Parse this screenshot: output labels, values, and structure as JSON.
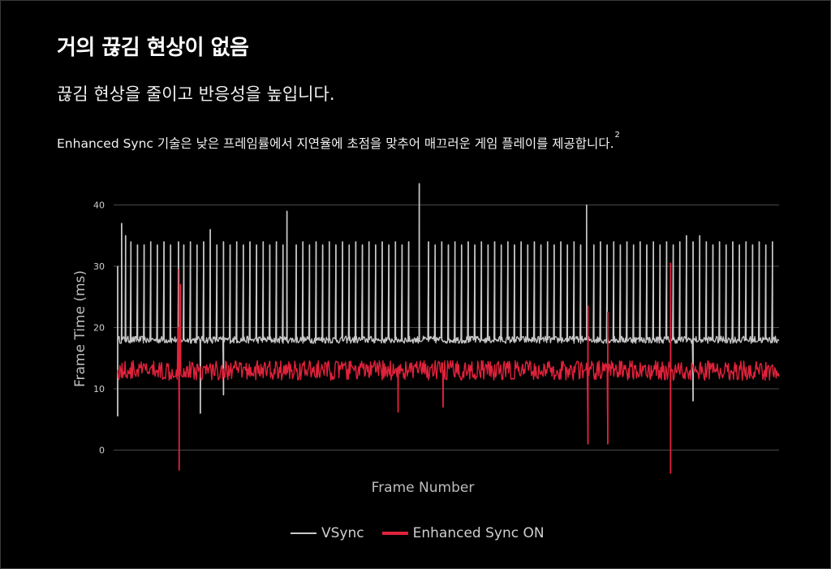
{
  "title": "거의 끊김 현상이 없음",
  "subtitle": "끊김 현상을 줄이고 반응성을 높입니다.",
  "description": "Enhanced Sync 기술은 낮은 프레임률에서 지연율에 초점을 맞추어 매끄러운 게임 플레이를 제공합니다.",
  "footnote": "2",
  "chart_data": {
    "type": "line",
    "xlabel": "Frame Number",
    "ylabel": "Frame Time (ms)",
    "ylim": [
      -3,
      45
    ],
    "yticks": [
      "0",
      "10",
      "20",
      "30",
      "40"
    ],
    "grid": true,
    "legend_position": "bottom-center",
    "colors": {
      "vsync": "#c8c8c8",
      "enhanced": "#e0223b",
      "grid": "#4a4a4a"
    },
    "series": [
      {
        "name": "VSync",
        "baseline": 18,
        "noise": 0.6,
        "spikes": [
          {
            "x": 0.0,
            "y": 30
          },
          {
            "x": 0.006,
            "y": 37
          },
          {
            "x": 0.012,
            "y": 35
          },
          {
            "x": 0.02,
            "y": 34
          },
          {
            "x": 0.03,
            "y": 33.5
          },
          {
            "x": 0.04,
            "y": 33.5
          },
          {
            "x": 0.05,
            "y": 34
          },
          {
            "x": 0.06,
            "y": 33.5
          },
          {
            "x": 0.07,
            "y": 34
          },
          {
            "x": 0.08,
            "y": 33.5
          },
          {
            "x": 0.092,
            "y": 34
          },
          {
            "x": 0.1,
            "y": 33.5
          },
          {
            "x": 0.11,
            "y": 34
          },
          {
            "x": 0.12,
            "y": 33.5
          },
          {
            "x": 0.13,
            "y": 34
          },
          {
            "x": 0.14,
            "y": 36
          },
          {
            "x": 0.15,
            "y": 33.5
          },
          {
            "x": 0.16,
            "y": 34
          },
          {
            "x": 0.17,
            "y": 33.5
          },
          {
            "x": 0.18,
            "y": 34
          },
          {
            "x": 0.19,
            "y": 33.5
          },
          {
            "x": 0.2,
            "y": 34
          },
          {
            "x": 0.21,
            "y": 33.5
          },
          {
            "x": 0.22,
            "y": 34
          },
          {
            "x": 0.23,
            "y": 33.5
          },
          {
            "x": 0.24,
            "y": 34
          },
          {
            "x": 0.25,
            "y": 33.5
          },
          {
            "x": 0.256,
            "y": 39
          },
          {
            "x": 0.27,
            "y": 33.5
          },
          {
            "x": 0.28,
            "y": 34
          },
          {
            "x": 0.29,
            "y": 33.5
          },
          {
            "x": 0.3,
            "y": 34
          },
          {
            "x": 0.31,
            "y": 33.5
          },
          {
            "x": 0.32,
            "y": 34
          },
          {
            "x": 0.33,
            "y": 33.5
          },
          {
            "x": 0.34,
            "y": 34
          },
          {
            "x": 0.35,
            "y": 33.5
          },
          {
            "x": 0.36,
            "y": 34
          },
          {
            "x": 0.37,
            "y": 33.5
          },
          {
            "x": 0.38,
            "y": 34
          },
          {
            "x": 0.39,
            "y": 33.5
          },
          {
            "x": 0.4,
            "y": 34
          },
          {
            "x": 0.41,
            "y": 33.5
          },
          {
            "x": 0.42,
            "y": 34
          },
          {
            "x": 0.43,
            "y": 33.5
          },
          {
            "x": 0.44,
            "y": 34
          },
          {
            "x": 0.456,
            "y": 43.5
          },
          {
            "x": 0.47,
            "y": 34
          },
          {
            "x": 0.48,
            "y": 33.5
          },
          {
            "x": 0.49,
            "y": 34
          },
          {
            "x": 0.5,
            "y": 33.5
          },
          {
            "x": 0.51,
            "y": 34
          },
          {
            "x": 0.52,
            "y": 33.5
          },
          {
            "x": 0.53,
            "y": 34
          },
          {
            "x": 0.54,
            "y": 33.5
          },
          {
            "x": 0.55,
            "y": 34
          },
          {
            "x": 0.56,
            "y": 33.5
          },
          {
            "x": 0.57,
            "y": 34
          },
          {
            "x": 0.58,
            "y": 33.5
          },
          {
            "x": 0.59,
            "y": 34
          },
          {
            "x": 0.6,
            "y": 33.5
          },
          {
            "x": 0.61,
            "y": 34
          },
          {
            "x": 0.62,
            "y": 33.5
          },
          {
            "x": 0.63,
            "y": 34
          },
          {
            "x": 0.64,
            "y": 33.5
          },
          {
            "x": 0.65,
            "y": 34
          },
          {
            "x": 0.66,
            "y": 33.5
          },
          {
            "x": 0.67,
            "y": 34
          },
          {
            "x": 0.68,
            "y": 33.5
          },
          {
            "x": 0.69,
            "y": 34
          },
          {
            "x": 0.7,
            "y": 33.5
          },
          {
            "x": 0.709,
            "y": 40
          },
          {
            "x": 0.72,
            "y": 33.5
          },
          {
            "x": 0.73,
            "y": 34
          },
          {
            "x": 0.74,
            "y": 33.5
          },
          {
            "x": 0.75,
            "y": 34
          },
          {
            "x": 0.76,
            "y": 33.5
          },
          {
            "x": 0.77,
            "y": 34
          },
          {
            "x": 0.78,
            "y": 33.5
          },
          {
            "x": 0.79,
            "y": 34
          },
          {
            "x": 0.8,
            "y": 33.5
          },
          {
            "x": 0.81,
            "y": 34
          },
          {
            "x": 0.82,
            "y": 33.5
          },
          {
            "x": 0.83,
            "y": 34
          },
          {
            "x": 0.84,
            "y": 33.5
          },
          {
            "x": 0.85,
            "y": 34
          },
          {
            "x": 0.86,
            "y": 35
          },
          {
            "x": 0.87,
            "y": 34
          },
          {
            "x": 0.88,
            "y": 35
          },
          {
            "x": 0.89,
            "y": 34
          },
          {
            "x": 0.9,
            "y": 33.5
          },
          {
            "x": 0.91,
            "y": 34
          },
          {
            "x": 0.92,
            "y": 33.5
          },
          {
            "x": 0.93,
            "y": 34
          },
          {
            "x": 0.94,
            "y": 33.5
          },
          {
            "x": 0.95,
            "y": 34
          },
          {
            "x": 0.96,
            "y": 33.5
          },
          {
            "x": 0.97,
            "y": 34
          },
          {
            "x": 0.98,
            "y": 33.5
          },
          {
            "x": 0.99,
            "y": 34
          }
        ],
        "dips": [
          {
            "x": 0.0,
            "y": 5.5
          },
          {
            "x": 0.125,
            "y": 6
          },
          {
            "x": 0.16,
            "y": 9
          },
          {
            "x": 0.87,
            "y": 8
          }
        ]
      },
      {
        "name": "Enhanced Sync ON",
        "baseline": 13,
        "noise": 1.6,
        "spikes": [
          {
            "x": 0.093,
            "y": 29.5
          },
          {
            "x": 0.095,
            "y": 27
          },
          {
            "x": 0.091,
            "y": 20
          },
          {
            "x": 0.711,
            "y": 23.5
          },
          {
            "x": 0.741,
            "y": 22.5
          },
          {
            "x": 0.836,
            "y": 30.5
          }
        ],
        "dips": [
          {
            "x": 0.093,
            "y": -3.3
          },
          {
            "x": 0.093,
            "y": 6.5
          },
          {
            "x": 0.424,
            "y": 6.2
          },
          {
            "x": 0.492,
            "y": 7
          },
          {
            "x": 0.711,
            "y": 1
          },
          {
            "x": 0.741,
            "y": 1
          },
          {
            "x": 0.836,
            "y": -3.8
          }
        ]
      }
    ]
  }
}
